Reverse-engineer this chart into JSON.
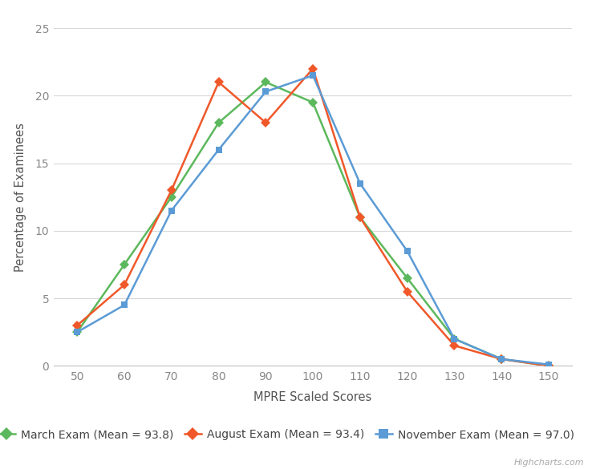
{
  "x_values": [
    50,
    60,
    70,
    80,
    90,
    100,
    110,
    120,
    130,
    140,
    150
  ],
  "march": [
    2.5,
    7.5,
    12.5,
    18.0,
    21.0,
    19.5,
    11.0,
    6.5,
    2.0,
    0.5,
    0.0
  ],
  "august": [
    3.0,
    6.0,
    13.0,
    21.0,
    18.0,
    22.0,
    11.0,
    5.5,
    1.5,
    0.5,
    0.0
  ],
  "november": [
    2.5,
    4.5,
    11.5,
    16.0,
    20.3,
    21.5,
    13.5,
    8.5,
    2.0,
    0.5,
    0.1
  ],
  "march_color": "#5cb85c",
  "august_color": "#f0582a",
  "november_color": "#5b9bd5",
  "march_label": "March Exam (Mean = 93.8)",
  "august_label": "August Exam (Mean = 93.4)",
  "november_label": "November Exam (Mean = 97.0)",
  "xlabel": "MPRE Scaled Scores",
  "ylabel": "Percentage of Examinees",
  "ylim": [
    0,
    25
  ],
  "xlim": [
    45,
    155
  ],
  "yticks": [
    0,
    5,
    10,
    15,
    20,
    25
  ],
  "xticks": [
    50,
    60,
    70,
    80,
    90,
    100,
    110,
    120,
    130,
    140,
    150
  ],
  "background_color": "#ffffff",
  "grid_color": "#d8d8d8",
  "markersize": 7,
  "linewidth": 1.8,
  "watermark": "Highcharts.com"
}
